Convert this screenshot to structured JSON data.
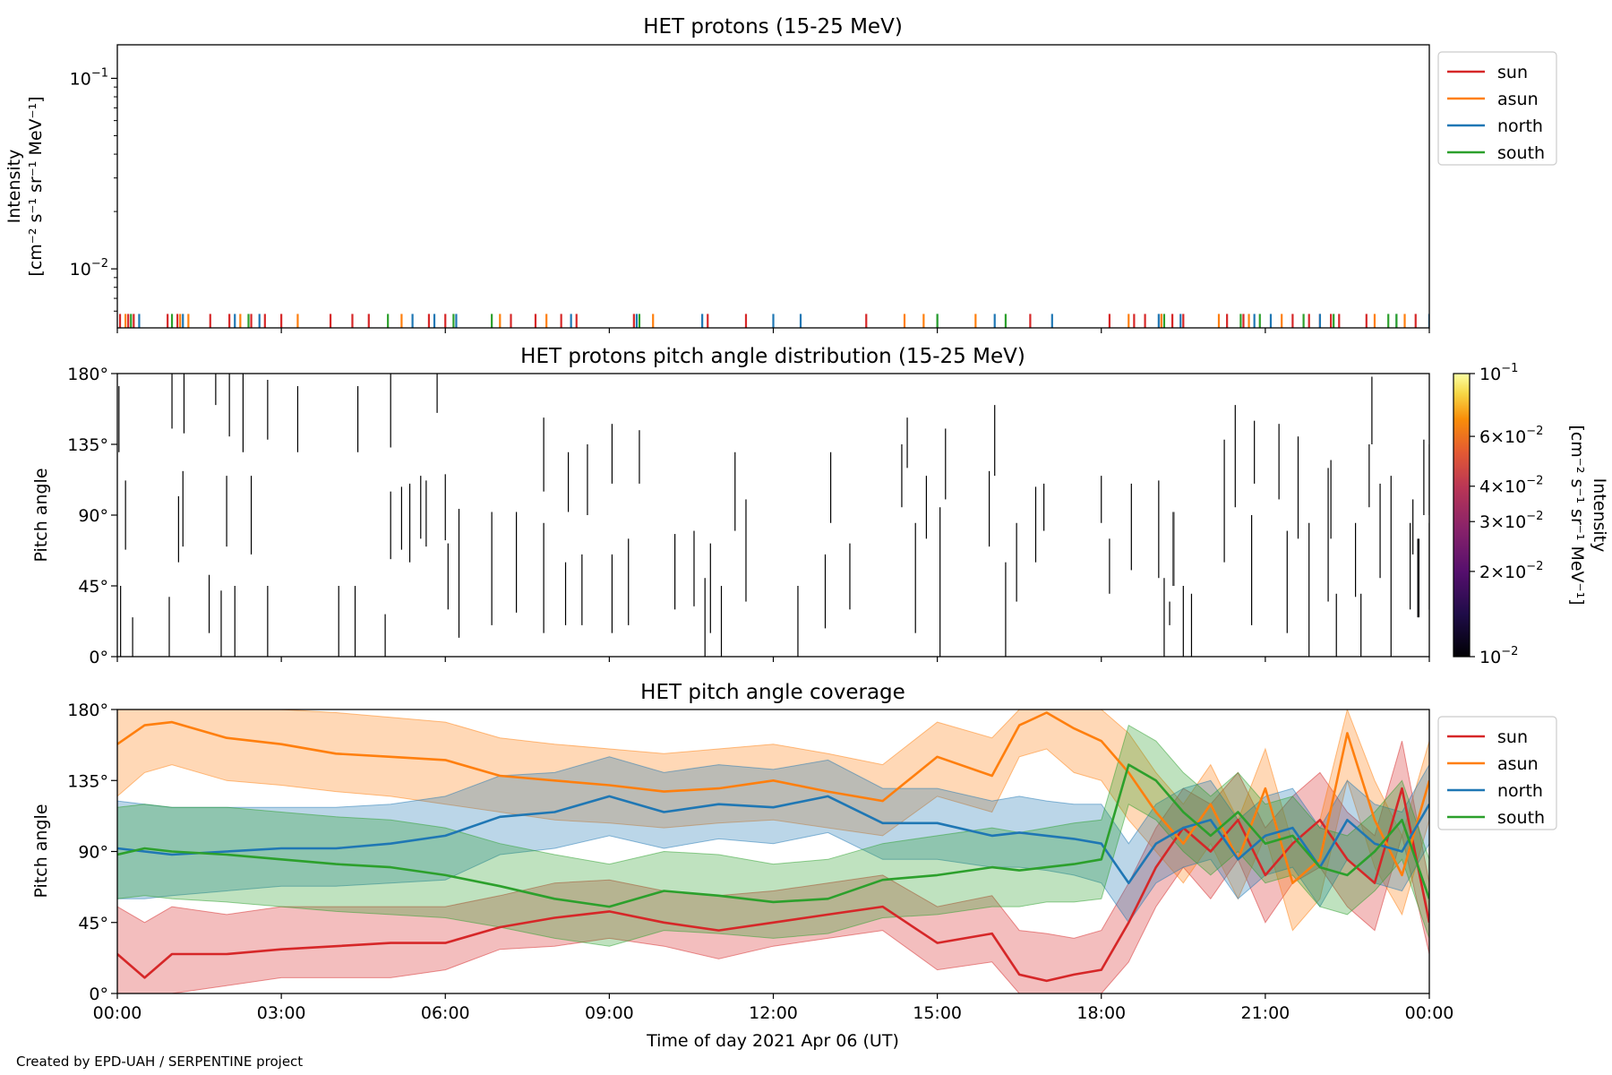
{
  "figure": {
    "credit": "Created by EPD-UAH / SERPENTINE project",
    "xlabel": "Time of day 2021 Apr 06 (UT)",
    "x_ticks": [
      "00:00",
      "03:00",
      "06:00",
      "09:00",
      "12:00",
      "15:00",
      "18:00",
      "21:00",
      "00:00"
    ]
  },
  "chart_data": [
    {
      "type": "line",
      "title": "HET protons (15-25 MeV)",
      "ylabel_line1": "Intensity",
      "ylabel_line2": "[cm⁻² s⁻¹ sr⁻¹ MeV⁻¹]",
      "yscale": "log",
      "ylim": [
        0.0049,
        0.15
      ],
      "xlim_hours": [
        0,
        24
      ],
      "y_ticks": [
        {
          "base": "10",
          "exp": "−1",
          "value": 0.1
        },
        {
          "base": "10",
          "exp": "−2",
          "value": 0.01
        }
      ],
      "legend_position": "outside-right",
      "series": [
        {
          "name": "sun",
          "color": "#d62728",
          "spike_hours": [
            0.05,
            0.2,
            0.3,
            0.92,
            1.1,
            1.7,
            2.05,
            2.45,
            2.7,
            3.0,
            3.9,
            4.3,
            4.6,
            5.7,
            6.0,
            7.2,
            7.65,
            8.12,
            8.4,
            9.45,
            10.8,
            11.5,
            13.7,
            16.7,
            18.15,
            18.6,
            18.8,
            19.1,
            19.3,
            19.5,
            20.3,
            20.6,
            21.5,
            21.8,
            22.0,
            22.2,
            22.35,
            22.85,
            23.75
          ]
        },
        {
          "name": "asun",
          "color": "#ff7f0e",
          "spike_hours": [
            0.15,
            1.15,
            1.3,
            2.25,
            3.3,
            5.2,
            7.0,
            7.85,
            9.8,
            14.4,
            14.75,
            15.7,
            18.5,
            19.1,
            20.15,
            20.7,
            21.3,
            23.0,
            23.55
          ]
        },
        {
          "name": "north",
          "color": "#1f77b4",
          "spike_hours": [
            0.4,
            1.2,
            2.15,
            2.6,
            5.4,
            5.8,
            6.2,
            8.3,
            9.5,
            10.7,
            12.0,
            12.5,
            15.0,
            16.05,
            17.1,
            19.05,
            19.45,
            20.8,
            21.1,
            22.0,
            23.4,
            24.0
          ]
        },
        {
          "name": "south",
          "color": "#2ca02c",
          "spike_hours": [
            0.25,
            1.0,
            2.4,
            4.95,
            6.15,
            6.85,
            9.55,
            15.0,
            16.25,
            19.15,
            20.55,
            20.9,
            21.7,
            22.25,
            23.25,
            23.4
          ]
        }
      ]
    },
    {
      "type": "heatmap",
      "title": "HET protons pitch angle distribution (15-25 MeV)",
      "ylabel": "Pitch angle",
      "ylim": [
        0,
        180
      ],
      "y_ticks": [
        "0°",
        "45°",
        "90°",
        "135°",
        "180°"
      ],
      "colorbar": {
        "scale": "log",
        "range": [
          0.01,
          0.1
        ],
        "colormap": "inferno",
        "label_line1": "Intensity",
        "label_line2": "[cm⁻² s⁻¹ sr⁻¹ MeV⁻¹]",
        "ticks": [
          {
            "coef": "",
            "exp": "−1",
            "value": 0.1
          },
          {
            "coef": "6×",
            "exp": "−2",
            "value": 0.06
          },
          {
            "coef": "4×",
            "exp": "−2",
            "value": 0.04
          },
          {
            "coef": "3×",
            "exp": "−2",
            "value": 0.03
          },
          {
            "coef": "2×",
            "exp": "−2",
            "value": 0.02
          },
          {
            "coef": "",
            "exp": "−2",
            "value": 0.01
          }
        ]
      },
      "segments_hours_deg": [
        [
          0.03,
          130,
          172
        ],
        [
          0.06,
          0,
          45
        ],
        [
          0.15,
          68,
          112
        ],
        [
          0.28,
          0,
          25
        ],
        [
          0.95,
          0,
          38
        ],
        [
          1.0,
          145,
          180
        ],
        [
          1.12,
          60,
          102
        ],
        [
          1.2,
          70,
          118
        ],
        [
          1.22,
          142,
          180
        ],
        [
          1.68,
          15,
          52
        ],
        [
          1.8,
          160,
          180
        ],
        [
          1.9,
          0,
          42
        ],
        [
          2.0,
          70,
          115
        ],
        [
          2.05,
          140,
          180
        ],
        [
          2.15,
          0,
          45
        ],
        [
          2.3,
          130,
          180
        ],
        [
          2.45,
          65,
          115
        ],
        [
          2.75,
          0,
          45
        ],
        [
          2.75,
          138,
          176
        ],
        [
          3.3,
          130,
          172
        ],
        [
          4.05,
          0,
          45
        ],
        [
          4.35,
          0,
          45
        ],
        [
          4.4,
          130,
          172
        ],
        [
          4.9,
          0,
          27
        ],
        [
          5.0,
          133,
          180
        ],
        [
          5.0,
          62,
          105
        ],
        [
          5.2,
          68,
          108
        ],
        [
          5.35,
          60,
          110
        ],
        [
          5.55,
          75,
          115
        ],
        [
          5.65,
          70,
          112
        ],
        [
          5.85,
          155,
          180
        ],
        [
          6.0,
          74,
          116
        ],
        [
          6.05,
          30,
          72
        ],
        [
          6.25,
          12,
          94
        ],
        [
          6.85,
          20,
          92
        ],
        [
          7.3,
          28,
          92
        ],
        [
          7.8,
          15,
          85
        ],
        [
          7.8,
          105,
          152
        ],
        [
          8.2,
          20,
          60
        ],
        [
          8.25,
          92,
          130
        ],
        [
          8.5,
          20,
          65
        ],
        [
          8.6,
          90,
          135
        ],
        [
          9.05,
          15,
          65
        ],
        [
          9.05,
          110,
          148
        ],
        [
          9.35,
          20,
          75
        ],
        [
          9.55,
          110,
          144
        ],
        [
          10.2,
          30,
          78
        ],
        [
          10.55,
          32,
          80
        ],
        [
          10.75,
          0,
          50
        ],
        [
          10.85,
          15,
          72
        ],
        [
          11.05,
          0,
          45
        ],
        [
          11.3,
          80,
          130
        ],
        [
          11.5,
          35,
          100
        ],
        [
          12.45,
          0,
          45
        ],
        [
          12.95,
          18,
          65
        ],
        [
          13.05,
          85,
          130
        ],
        [
          13.4,
          30,
          72
        ],
        [
          14.35,
          95,
          135
        ],
        [
          14.45,
          120,
          152
        ],
        [
          14.6,
          15,
          85
        ],
        [
          14.8,
          75,
          115
        ],
        [
          15.05,
          0,
          95
        ],
        [
          15.15,
          100,
          145
        ],
        [
          15.95,
          70,
          118
        ],
        [
          16.05,
          115,
          160
        ],
        [
          16.25,
          0,
          60
        ],
        [
          16.45,
          35,
          85
        ],
        [
          16.8,
          60,
          108
        ],
        [
          16.95,
          80,
          110
        ],
        [
          18.0,
          85,
          115
        ],
        [
          18.15,
          40,
          75
        ],
        [
          18.55,
          55,
          110
        ],
        [
          19.05,
          50,
          112
        ],
        [
          19.15,
          0,
          50
        ],
        [
          19.25,
          20,
          35
        ],
        [
          19.5,
          0,
          45
        ],
        [
          19.65,
          0,
          40
        ],
        [
          20.25,
          60,
          138
        ],
        [
          20.45,
          95,
          160
        ],
        [
          20.75,
          20,
          90
        ],
        [
          20.8,
          110,
          150
        ],
        [
          21.25,
          100,
          148
        ],
        [
          21.4,
          15,
          80
        ],
        [
          21.6,
          75,
          140
        ],
        [
          21.8,
          0,
          85
        ],
        [
          22.15,
          35,
          120
        ],
        [
          22.2,
          75,
          125
        ],
        [
          22.3,
          0,
          40
        ],
        [
          22.65,
          38,
          85
        ],
        [
          22.75,
          0,
          40
        ],
        [
          22.9,
          95,
          135
        ],
        [
          22.95,
          135,
          178
        ],
        [
          23.1,
          50,
          110
        ],
        [
          23.3,
          0,
          115
        ],
        [
          23.65,
          30,
          85
        ],
        [
          23.7,
          65,
          100
        ],
        [
          23.9,
          90,
          138
        ],
        [
          24.0,
          30,
          85
        ],
        [
          24.0,
          90,
          135
        ]
      ],
      "segments_colored": [
        {
          "hour": 19.32,
          "deg0": 45,
          "deg1": 92,
          "color": "#555555"
        },
        {
          "hour": 23.8,
          "deg0": 25,
          "deg1": 75,
          "color": "#000004"
        }
      ]
    },
    {
      "type": "area",
      "title": "HET pitch angle coverage",
      "ylabel": "Pitch angle",
      "ylim": [
        0,
        180
      ],
      "y_ticks": [
        "0°",
        "45°",
        "90°",
        "135°",
        "180°"
      ],
      "legend_position": "outside-right",
      "hours": [
        0,
        0.5,
        1,
        2,
        3,
        4,
        5,
        6,
        7,
        8,
        9,
        10,
        11,
        12,
        13,
        14,
        15,
        16,
        16.5,
        17,
        17.5,
        18,
        18.5,
        19,
        19.5,
        20,
        20.5,
        21,
        21.5,
        22,
        22.5,
        23,
        23.5,
        24
      ],
      "series": [
        {
          "name": "sun",
          "color": "#d62728",
          "values": [
            25,
            10,
            25,
            25,
            28,
            30,
            32,
            32,
            42,
            48,
            52,
            45,
            40,
            45,
            50,
            55,
            32,
            38,
            12,
            8,
            12,
            15,
            45,
            80,
            105,
            90,
            110,
            75,
            95,
            110,
            85,
            70,
            130,
            45
          ],
          "lower": [
            0,
            0,
            0,
            5,
            10,
            10,
            10,
            15,
            28,
            30,
            35,
            30,
            22,
            30,
            35,
            40,
            15,
            20,
            0,
            0,
            0,
            0,
            20,
            55,
            80,
            60,
            85,
            45,
            70,
            80,
            55,
            40,
            100,
            25
          ],
          "upper": [
            55,
            45,
            55,
            50,
            55,
            55,
            55,
            55,
            62,
            70,
            72,
            65,
            62,
            65,
            70,
            75,
            55,
            62,
            40,
            38,
            35,
            40,
            70,
            105,
            130,
            120,
            140,
            105,
            125,
            140,
            115,
            100,
            160,
            70
          ]
        },
        {
          "name": "asun",
          "color": "#ff7f0e",
          "values": [
            158,
            170,
            172,
            162,
            158,
            152,
            150,
            148,
            138,
            135,
            132,
            128,
            130,
            135,
            128,
            122,
            150,
            138,
            170,
            178,
            168,
            160,
            140,
            115,
            95,
            120,
            85,
            130,
            70,
            85,
            165,
            110,
            75,
            135
          ],
          "lower": [
            125,
            140,
            145,
            135,
            132,
            128,
            125,
            120,
            115,
            110,
            108,
            105,
            108,
            110,
            105,
            100,
            125,
            115,
            150,
            155,
            140,
            135,
            110,
            90,
            70,
            95,
            60,
            100,
            40,
            60,
            135,
            80,
            50,
            110
          ],
          "upper": [
            180,
            180,
            180,
            180,
            180,
            178,
            175,
            172,
            162,
            158,
            155,
            152,
            155,
            158,
            152,
            145,
            172,
            162,
            180,
            180,
            180,
            180,
            165,
            140,
            120,
            145,
            110,
            155,
            95,
            110,
            180,
            135,
            100,
            160
          ]
        },
        {
          "name": "north",
          "color": "#1f77b4",
          "values": [
            92,
            90,
            88,
            90,
            92,
            92,
            95,
            100,
            112,
            115,
            125,
            115,
            120,
            118,
            125,
            108,
            108,
            100,
            102,
            100,
            98,
            95,
            70,
            95,
            105,
            110,
            85,
            100,
            105,
            80,
            110,
            95,
            90,
            120
          ],
          "lower": [
            60,
            60,
            62,
            65,
            68,
            68,
            70,
            72,
            88,
            92,
            100,
            92,
            98,
            95,
            102,
            85,
            85,
            80,
            80,
            78,
            75,
            70,
            45,
            70,
            80,
            85,
            60,
            75,
            80,
            55,
            85,
            70,
            65,
            95
          ],
          "upper": [
            122,
            120,
            118,
            118,
            118,
            118,
            120,
            125,
            138,
            140,
            150,
            140,
            145,
            142,
            148,
            130,
            130,
            122,
            125,
            122,
            120,
            120,
            95,
            120,
            130,
            135,
            110,
            125,
            130,
            105,
            135,
            120,
            115,
            145
          ]
        },
        {
          "name": "south",
          "color": "#2ca02c",
          "values": [
            88,
            92,
            90,
            88,
            85,
            82,
            80,
            75,
            68,
            60,
            55,
            65,
            62,
            58,
            60,
            72,
            75,
            80,
            78,
            80,
            82,
            85,
            145,
            135,
            115,
            100,
            115,
            95,
            100,
            80,
            75,
            90,
            110,
            60
          ],
          "lower": [
            60,
            62,
            60,
            58,
            55,
            52,
            50,
            48,
            42,
            35,
            30,
            40,
            38,
            35,
            38,
            48,
            50,
            55,
            55,
            58,
            58,
            60,
            120,
            110,
            90,
            75,
            90,
            70,
            75,
            55,
            50,
            65,
            85,
            35
          ],
          "upper": [
            118,
            120,
            118,
            118,
            115,
            112,
            110,
            105,
            95,
            88,
            82,
            90,
            88,
            82,
            85,
            95,
            100,
            105,
            102,
            105,
            108,
            110,
            170,
            160,
            140,
            125,
            140,
            120,
            125,
            105,
            100,
            115,
            135,
            85
          ]
        }
      ]
    }
  ]
}
